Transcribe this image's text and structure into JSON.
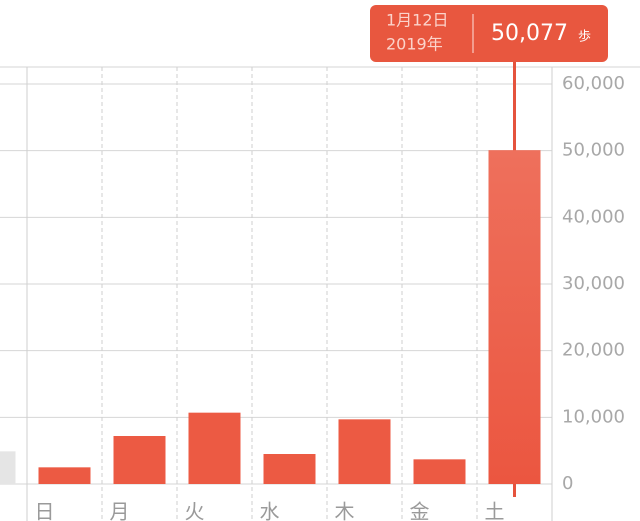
{
  "chart_data": {
    "type": "bar",
    "categories": [
      null,
      "日",
      "月",
      "火",
      "水",
      "木",
      "金",
      "土"
    ],
    "values": [
      4900,
      2500,
      7200,
      10700,
      4500,
      9700,
      3700,
      50077
    ],
    "colors": [
      "#e5e5e5",
      "#ec5a43",
      "#ec5a43",
      "#ec5a43",
      "#ec5a43",
      "#ec5a43",
      "#ec5a43",
      "#ec5a43"
    ],
    "ylim": [
      0,
      60000
    ],
    "yticks": [
      0,
      {
        "value": 10000,
        "label": "10,000"
      },
      {
        "value": 20000,
        "label": "20,000"
      },
      {
        "value": 30000,
        "label": "30,000"
      },
      {
        "value": 40000,
        "label": "40,000"
      },
      {
        "value": 50000,
        "label": "50,000"
      },
      {
        "value": 60000,
        "label": "60,000"
      }
    ],
    "grid": true,
    "tooltip": {
      "date": "1月12日",
      "year": "2019年",
      "value_label": "50,077",
      "unit": "歩",
      "index": 7
    }
  }
}
